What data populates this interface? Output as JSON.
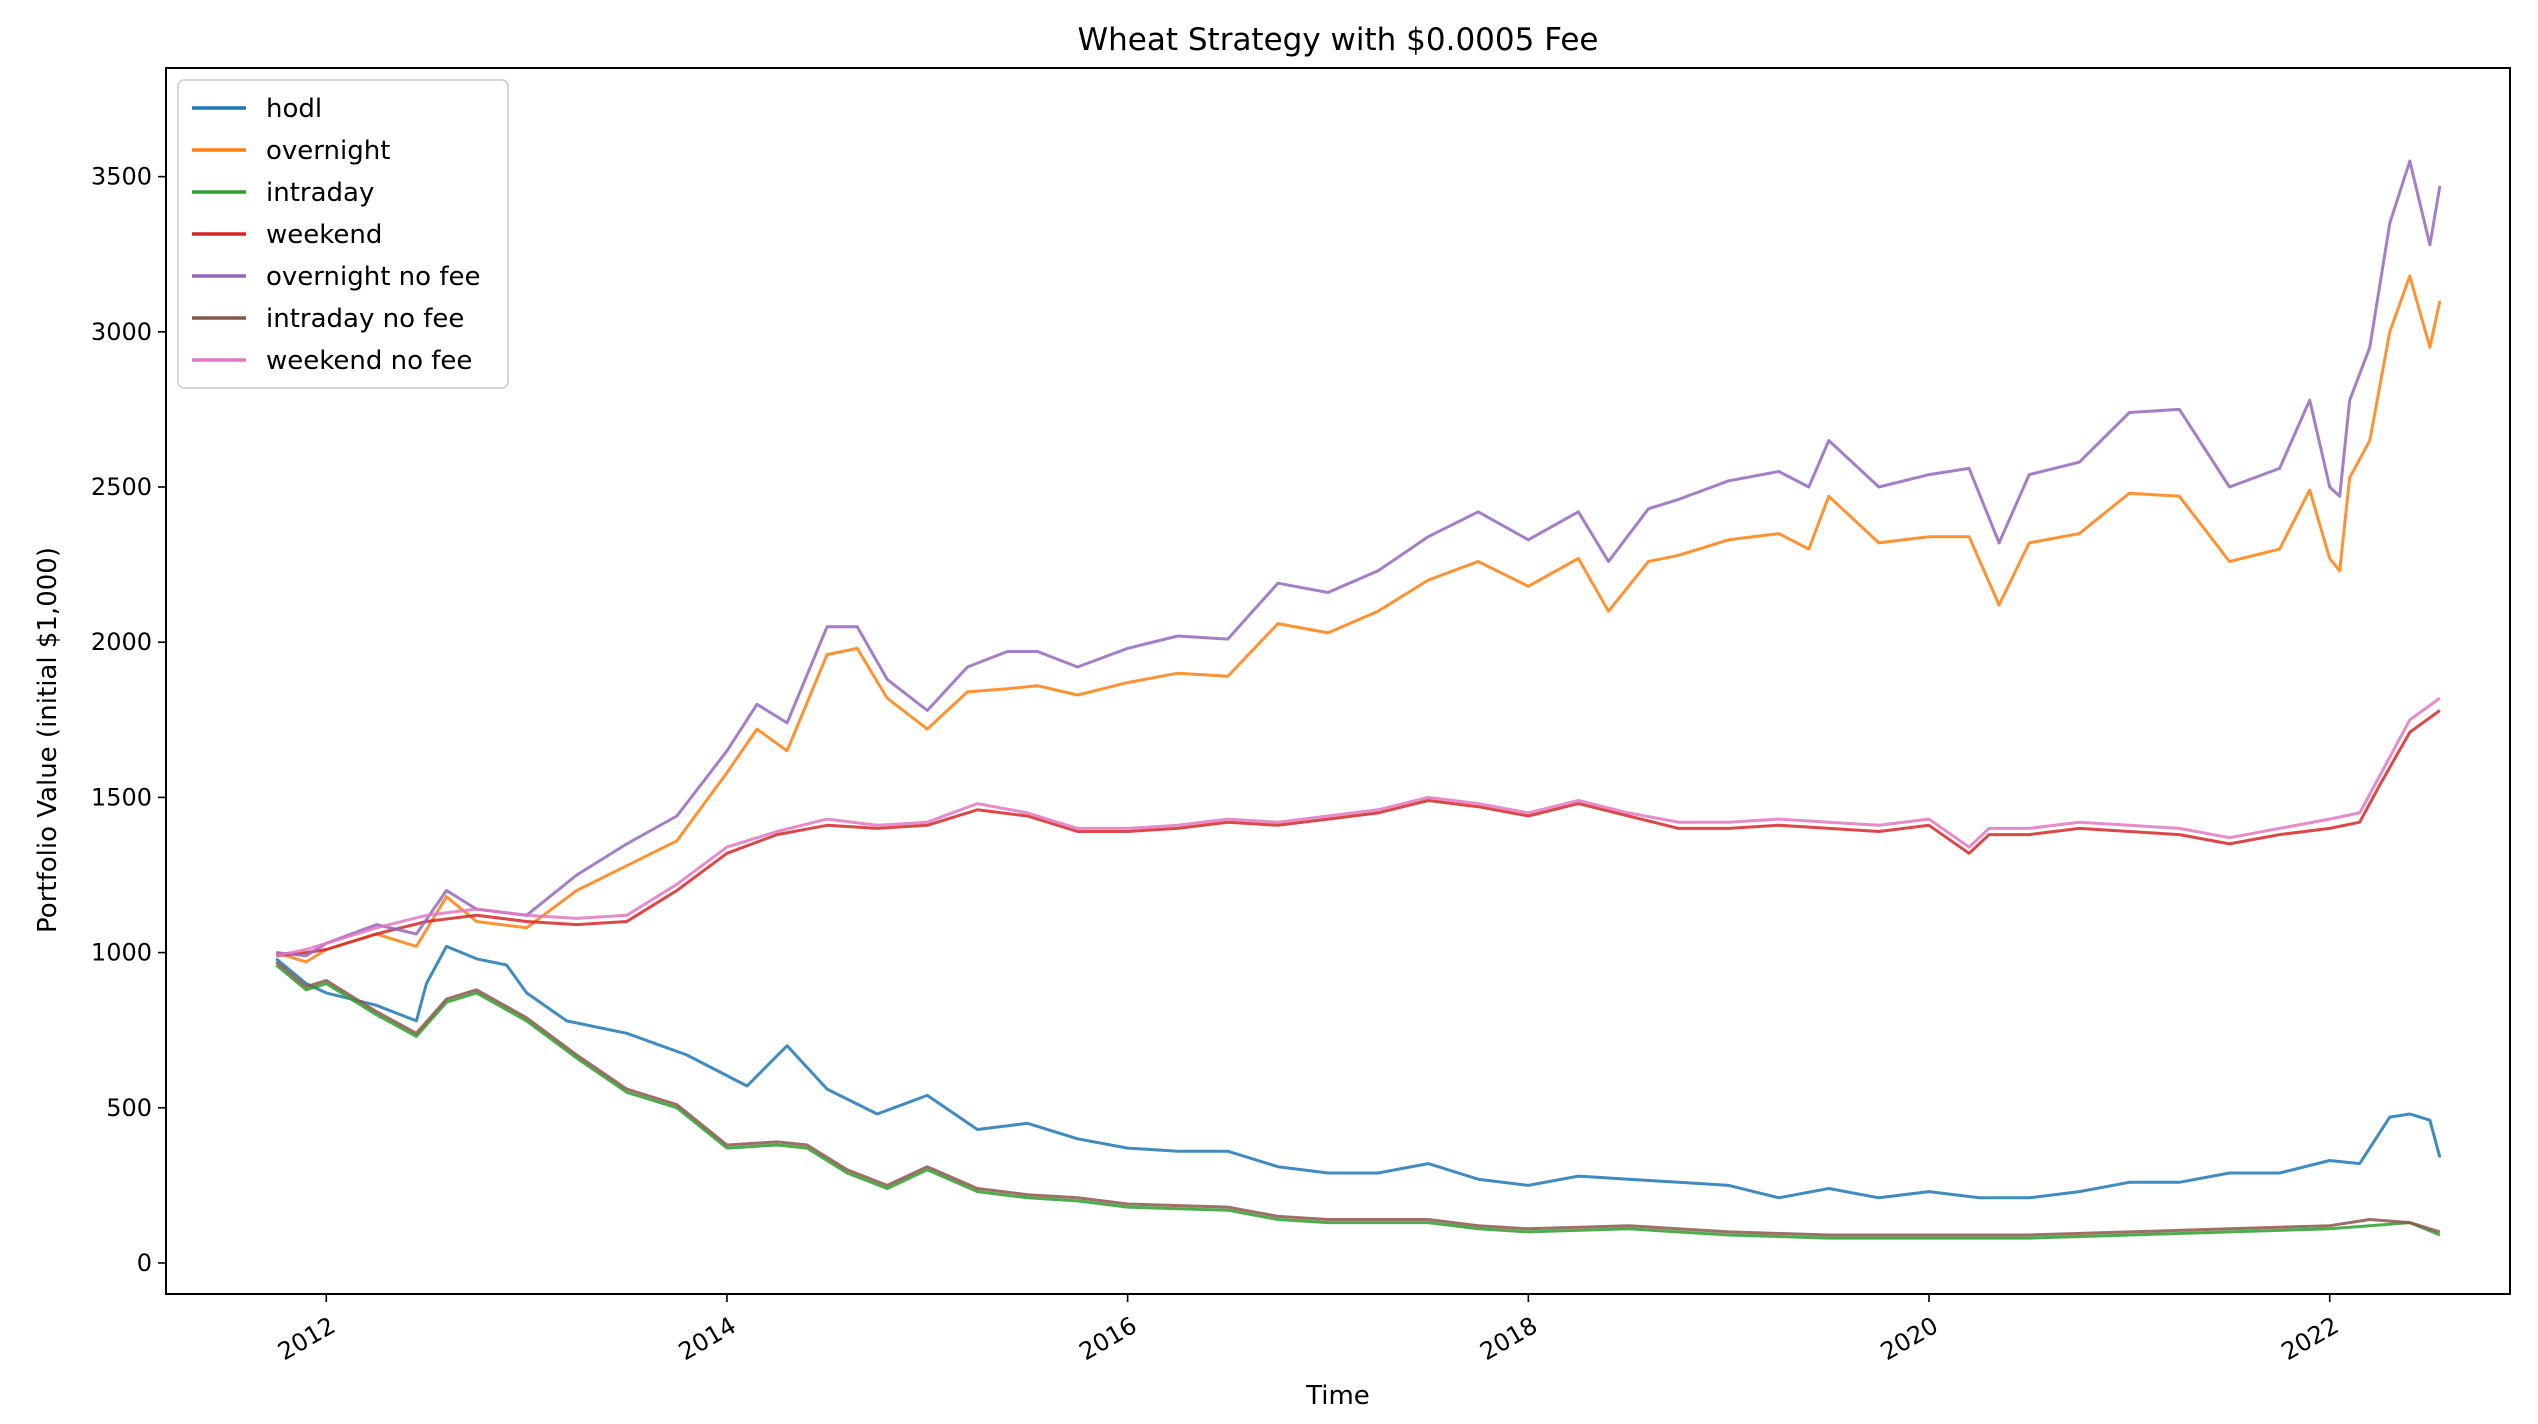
{
  "chart_data": {
    "type": "line",
    "title": "Wheat Strategy with $0.0005 Fee",
    "xlabel": "Time",
    "ylabel": "Portfolio Value (initial $1,000)",
    "xlim": [
      2011.2,
      2022.9
    ],
    "ylim": [
      -100,
      3850
    ],
    "x_ticks": [
      {
        "value": 2012,
        "label": "2012"
      },
      {
        "value": 2014,
        "label": "2014"
      },
      {
        "value": 2016,
        "label": "2016"
      },
      {
        "value": 2018,
        "label": "2018"
      },
      {
        "value": 2020,
        "label": "2020"
      },
      {
        "value": 2022,
        "label": "2022"
      }
    ],
    "y_ticks": [
      {
        "value": 0,
        "label": "0"
      },
      {
        "value": 500,
        "label": "500"
      },
      {
        "value": 1000,
        "label": "1000"
      },
      {
        "value": 1500,
        "label": "1500"
      },
      {
        "value": 2000,
        "label": "2000"
      },
      {
        "value": 2500,
        "label": "2500"
      },
      {
        "value": 3000,
        "label": "3000"
      },
      {
        "value": 3500,
        "label": "3500"
      }
    ],
    "grid": false,
    "legend_position": "top-left",
    "series": [
      {
        "name": "hodl",
        "color": "#1f77b4",
        "x": [
          2011.75,
          2011.9,
          2012.0,
          2012.25,
          2012.45,
          2012.5,
          2012.6,
          2012.75,
          2012.9,
          2013.0,
          2013.2,
          2013.5,
          2013.8,
          2014.1,
          2014.3,
          2014.5,
          2014.75,
          2015.0,
          2015.25,
          2015.5,
          2015.75,
          2016.0,
          2016.25,
          2016.5,
          2016.75,
          2017.0,
          2017.25,
          2017.5,
          2017.75,
          2018.0,
          2018.25,
          2018.5,
          2018.75,
          2019.0,
          2019.25,
          2019.5,
          2019.75,
          2020.0,
          2020.25,
          2020.5,
          2020.75,
          2021.0,
          2021.25,
          2021.5,
          2021.75,
          2022.0,
          2022.15,
          2022.3,
          2022.4,
          2022.5,
          2022.55
        ],
        "y": [
          980,
          900,
          870,
          830,
          780,
          900,
          1020,
          980,
          960,
          870,
          780,
          740,
          670,
          570,
          700,
          560,
          480,
          540,
          430,
          450,
          400,
          370,
          360,
          360,
          310,
          290,
          290,
          320,
          270,
          250,
          280,
          270,
          260,
          250,
          210,
          240,
          210,
          230,
          210,
          210,
          230,
          260,
          260,
          290,
          290,
          330,
          320,
          470,
          480,
          460,
          340
        ]
      },
      {
        "name": "overnight",
        "color": "#ff7f0e",
        "x": [
          2011.75,
          2011.9,
          2012.0,
          2012.25,
          2012.45,
          2012.6,
          2012.75,
          2013.0,
          2013.25,
          2013.5,
          2013.75,
          2014.0,
          2014.15,
          2014.3,
          2014.5,
          2014.65,
          2014.8,
          2015.0,
          2015.2,
          2015.4,
          2015.55,
          2015.75,
          2016.0,
          2016.25,
          2016.5,
          2016.75,
          2017.0,
          2017.25,
          2017.5,
          2017.75,
          2018.0,
          2018.25,
          2018.4,
          2018.6,
          2018.75,
          2019.0,
          2019.25,
          2019.4,
          2019.5,
          2019.75,
          2020.0,
          2020.2,
          2020.35,
          2020.5,
          2020.75,
          2021.0,
          2021.25,
          2021.5,
          2021.75,
          2021.9,
          2022.0,
          2022.05,
          2022.1,
          2022.2,
          2022.3,
          2022.4,
          2022.5,
          2022.55
        ],
        "y": [
          1000,
          970,
          1010,
          1060,
          1020,
          1180,
          1100,
          1080,
          1200,
          1280,
          1360,
          1580,
          1720,
          1650,
          1960,
          1980,
          1820,
          1720,
          1840,
          1850,
          1860,
          1830,
          1870,
          1900,
          1890,
          2060,
          2030,
          2100,
          2200,
          2260,
          2180,
          2270,
          2100,
          2260,
          2280,
          2330,
          2350,
          2300,
          2470,
          2320,
          2340,
          2340,
          2120,
          2320,
          2350,
          2480,
          2470,
          2260,
          2300,
          2490,
          2270,
          2230,
          2530,
          2650,
          3000,
          3180,
          2950,
          3100
        ]
      },
      {
        "name": "intraday",
        "color": "#2ca02c",
        "x": [
          2011.75,
          2011.9,
          2012.0,
          2012.25,
          2012.45,
          2012.6,
          2012.75,
          2013.0,
          2013.25,
          2013.5,
          2013.75,
          2014.0,
          2014.25,
          2014.4,
          2014.6,
          2014.8,
          2015.0,
          2015.25,
          2015.5,
          2015.75,
          2016.0,
          2016.5,
          2016.75,
          2017.0,
          2017.5,
          2017.75,
          2018.0,
          2018.5,
          2019.0,
          2019.5,
          2020.0,
          2020.5,
          2021.0,
          2021.5,
          2022.0,
          2022.2,
          2022.4,
          2022.55
        ],
        "y": [
          960,
          880,
          900,
          800,
          730,
          840,
          870,
          780,
          660,
          550,
          500,
          370,
          380,
          370,
          290,
          240,
          300,
          230,
          210,
          200,
          180,
          170,
          140,
          130,
          130,
          110,
          100,
          110,
          90,
          80,
          80,
          80,
          90,
          100,
          110,
          120,
          130,
          90
        ]
      },
      {
        "name": "weekend",
        "color": "#d62728",
        "x": [
          2011.75,
          2011.9,
          2012.0,
          2012.25,
          2012.5,
          2012.75,
          2013.0,
          2013.25,
          2013.5,
          2013.75,
          2014.0,
          2014.25,
          2014.5,
          2014.75,
          2015.0,
          2015.25,
          2015.5,
          2015.75,
          2016.0,
          2016.25,
          2016.5,
          2016.75,
          2017.0,
          2017.25,
          2017.5,
          2017.75,
          2018.0,
          2018.25,
          2018.5,
          2018.75,
          2019.0,
          2019.25,
          2019.5,
          2019.75,
          2020.0,
          2020.2,
          2020.3,
          2020.5,
          2020.75,
          2021.0,
          2021.25,
          2021.5,
          2021.75,
          2022.0,
          2022.15,
          2022.25,
          2022.4,
          2022.55
        ],
        "y": [
          990,
          1000,
          1010,
          1060,
          1100,
          1120,
          1100,
          1090,
          1100,
          1200,
          1320,
          1380,
          1410,
          1400,
          1410,
          1460,
          1440,
          1390,
          1390,
          1400,
          1420,
          1410,
          1430,
          1450,
          1490,
          1470,
          1440,
          1480,
          1440,
          1400,
          1400,
          1410,
          1400,
          1390,
          1410,
          1320,
          1380,
          1380,
          1400,
          1390,
          1380,
          1350,
          1380,
          1400,
          1420,
          1540,
          1710,
          1780
        ]
      },
      {
        "name": "overnight no fee",
        "color": "#9467bd",
        "x": [
          2011.75,
          2011.9,
          2012.0,
          2012.25,
          2012.45,
          2012.6,
          2012.75,
          2013.0,
          2013.25,
          2013.5,
          2013.75,
          2014.0,
          2014.15,
          2014.3,
          2014.5,
          2014.65,
          2014.8,
          2015.0,
          2015.2,
          2015.4,
          2015.55,
          2015.75,
          2016.0,
          2016.25,
          2016.5,
          2016.75,
          2017.0,
          2017.25,
          2017.5,
          2017.75,
          2018.0,
          2018.25,
          2018.4,
          2018.6,
          2018.75,
          2019.0,
          2019.25,
          2019.4,
          2019.5,
          2019.75,
          2020.0,
          2020.2,
          2020.35,
          2020.5,
          2020.75,
          2021.0,
          2021.25,
          2021.5,
          2021.75,
          2021.9,
          2022.0,
          2022.05,
          2022.1,
          2022.2,
          2022.3,
          2022.4,
          2022.5,
          2022.55
        ],
        "y": [
          1000,
          990,
          1030,
          1090,
          1060,
          1200,
          1140,
          1120,
          1250,
          1350,
          1440,
          1650,
          1800,
          1740,
          2050,
          2050,
          1880,
          1780,
          1920,
          1970,
          1970,
          1920,
          1980,
          2020,
          2010,
          2190,
          2160,
          2230,
          2340,
          2420,
          2330,
          2420,
          2260,
          2430,
          2460,
          2520,
          2550,
          2500,
          2650,
          2500,
          2540,
          2560,
          2320,
          2540,
          2580,
          2740,
          2750,
          2500,
          2560,
          2780,
          2500,
          2470,
          2780,
          2950,
          3350,
          3550,
          3280,
          3470
        ]
      },
      {
        "name": "intraday no fee",
        "color": "#8c564b",
        "x": [
          2011.75,
          2011.9,
          2012.0,
          2012.25,
          2012.45,
          2012.6,
          2012.75,
          2013.0,
          2013.25,
          2013.5,
          2013.75,
          2014.0,
          2014.25,
          2014.4,
          2014.6,
          2014.8,
          2015.0,
          2015.25,
          2015.5,
          2015.75,
          2016.0,
          2016.5,
          2016.75,
          2017.0,
          2017.5,
          2017.75,
          2018.0,
          2018.5,
          2019.0,
          2019.5,
          2020.0,
          2020.5,
          2021.0,
          2021.5,
          2022.0,
          2022.2,
          2022.4,
          2022.55
        ],
        "y": [
          970,
          890,
          910,
          810,
          740,
          850,
          880,
          790,
          670,
          560,
          510,
          380,
          390,
          380,
          300,
          250,
          310,
          240,
          220,
          210,
          190,
          180,
          150,
          140,
          140,
          120,
          110,
          120,
          100,
          90,
          90,
          90,
          100,
          110,
          120,
          140,
          130,
          100
        ]
      },
      {
        "name": "weekend no fee",
        "color": "#e377c2",
        "x": [
          2011.75,
          2011.9,
          2012.0,
          2012.25,
          2012.5,
          2012.75,
          2013.0,
          2013.25,
          2013.5,
          2013.75,
          2014.0,
          2014.25,
          2014.5,
          2014.75,
          2015.0,
          2015.25,
          2015.5,
          2015.75,
          2016.0,
          2016.25,
          2016.5,
          2016.75,
          2017.0,
          2017.25,
          2017.5,
          2017.75,
          2018.0,
          2018.25,
          2018.5,
          2018.75,
          2019.0,
          2019.25,
          2019.5,
          2019.75,
          2020.0,
          2020.2,
          2020.3,
          2020.5,
          2020.75,
          2021.0,
          2021.25,
          2021.5,
          2021.75,
          2022.0,
          2022.15,
          2022.25,
          2022.4,
          2022.55
        ],
        "y": [
          990,
          1010,
          1030,
          1080,
          1120,
          1140,
          1120,
          1110,
          1120,
          1220,
          1340,
          1390,
          1430,
          1410,
          1420,
          1480,
          1450,
          1400,
          1400,
          1410,
          1430,
          1420,
          1440,
          1460,
          1500,
          1480,
          1450,
          1490,
          1450,
          1420,
          1420,
          1430,
          1420,
          1410,
          1430,
          1340,
          1400,
          1400,
          1420,
          1410,
          1400,
          1370,
          1400,
          1430,
          1450,
          1570,
          1750,
          1820
        ]
      }
    ]
  }
}
